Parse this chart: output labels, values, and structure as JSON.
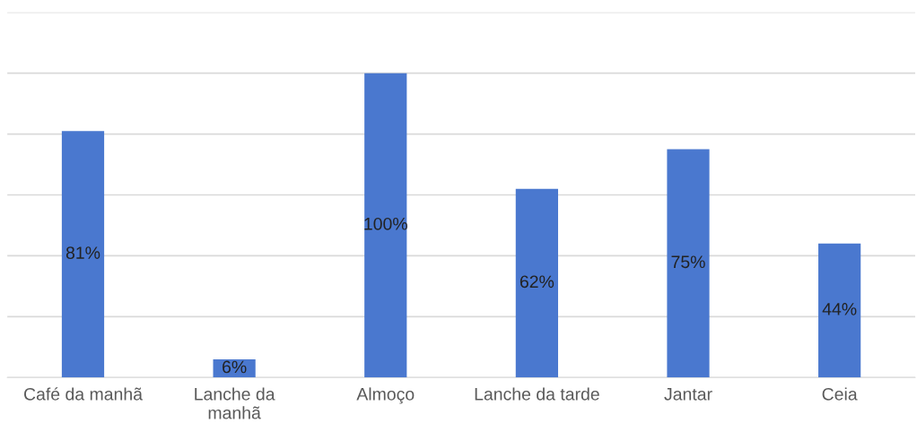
{
  "chart_data": {
    "type": "bar",
    "categories": [
      "Café da manhã",
      "Lanche da\nmanhã",
      "Almoço",
      "Lanche da tarde",
      "Jantar",
      "Ceia"
    ],
    "values": [
      81,
      6,
      100,
      62,
      75,
      44
    ],
    "value_labels": [
      "81%",
      "6%",
      "100%",
      "62%",
      "75%",
      "44%"
    ],
    "color": "#4a78cf",
    "ylim": [
      0,
      120
    ],
    "yticks": [
      {
        "value": 0,
        "label": null
      },
      {
        "value": 20,
        "label": null
      },
      {
        "value": 40,
        "label": null
      },
      {
        "value": 60,
        "label": null
      },
      {
        "value": 80,
        "label": null
      },
      {
        "value": 100,
        "label": null
      },
      {
        "value": 120,
        "label": null
      }
    ],
    "tick_labels": "x",
    "grid": "y"
  }
}
